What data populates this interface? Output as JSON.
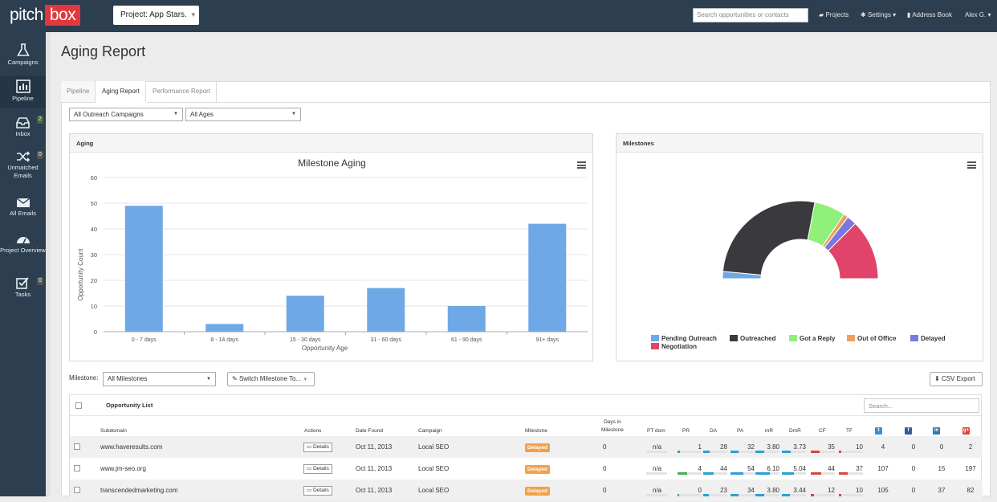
{
  "app": {
    "logo_left": "pitch",
    "logo_right": "box",
    "project_label": "Project: App Stars.",
    "search_placeholder": "Search opportunities or contacts",
    "nav": {
      "projects": "Projects",
      "settings": "Settings",
      "address_book": "Address Book",
      "user": "Alex G."
    }
  },
  "sidebar": {
    "items": [
      {
        "label": "Campaigns",
        "icon": "flask-icon"
      },
      {
        "label": "Pipeline",
        "icon": "bar-chart-icon"
      },
      {
        "label": "Inbox",
        "icon": "inbox-icon",
        "badge": "2"
      },
      {
        "label": "Unmatched Emails",
        "icon": "shuffle-icon",
        "badge": "0"
      },
      {
        "label": "All Emails",
        "icon": "envelope-icon"
      },
      {
        "label": "Project Overview",
        "icon": "dashboard-icon"
      },
      {
        "label": "Tasks",
        "icon": "checkbox-icon",
        "badge": "0"
      }
    ]
  },
  "page": {
    "title": "Aging Report"
  },
  "tabs": [
    "Pipeline",
    "Aging Report",
    "Performance Report"
  ],
  "filters": {
    "campaigns": "All Outreach Campaigns",
    "ages": "All Ages"
  },
  "aging_panel": {
    "header": "Aging"
  },
  "milestones_panel": {
    "header": "Milestones"
  },
  "chart_data": [
    {
      "type": "bar",
      "title": "Milestone Aging",
      "xlabel": "Opportunity Age",
      "ylabel": "Opportunity Count",
      "ylim": [
        0,
        60
      ],
      "yticks": [
        0,
        10,
        20,
        30,
        40,
        50,
        60
      ],
      "categories": [
        "0 - 7 days",
        "8 - 14 days",
        "15 - 30 days",
        "31 - 60 days",
        "61 - 90 days",
        "91+ days"
      ],
      "values": [
        49,
        3,
        14,
        17,
        10,
        42
      ],
      "color": "#6fa8e6"
    },
    {
      "type": "pie",
      "style": "semi-donut",
      "series": [
        {
          "name": "Pending Outreach",
          "value": 3,
          "color": "#6fa8e6"
        },
        {
          "name": "Outreached",
          "value": 53,
          "color": "#3a3a3e"
        },
        {
          "name": "Got a Reply",
          "value": 13,
          "color": "#8ff07a"
        },
        {
          "name": "Out of Office",
          "value": 2,
          "color": "#f0a05a"
        },
        {
          "name": "Delayed",
          "value": 4,
          "color": "#7a78e0"
        },
        {
          "name": "Negotiation",
          "value": 25,
          "color": "#e0446a"
        }
      ],
      "legend": "bottom"
    }
  ],
  "milestone_bar": {
    "label": "Milestone:",
    "select": "All Milestones",
    "switch_btn": "Switch Milestone To...",
    "csv_btn": "CSV Export"
  },
  "table": {
    "title": "Opportunity List",
    "search_placeholder": "Search...",
    "headers": {
      "subdomain": "Subdomain",
      "actions": "Actions",
      "date_found": "Date Found",
      "campaign": "Campaign",
      "milestone": "Milestone",
      "days_in": "Days in",
      "days_in2": "Milestone",
      "pt_dom": "PT dom",
      "pr": "PR",
      "da": "DA",
      "pa": "PA",
      "mr": "mR",
      "dmr": "DmR",
      "cf": "CF",
      "tf": "TF"
    },
    "social_headers": [
      {
        "icon": "twitter-icon",
        "glyph": "t",
        "color": "#3b8ed4"
      },
      {
        "icon": "facebook-icon",
        "glyph": "f",
        "color": "#3b5a9a"
      },
      {
        "icon": "linkedin-icon",
        "glyph": "in",
        "color": "#2a7ab0"
      },
      {
        "icon": "google-plus-icon",
        "glyph": "g+",
        "color": "#d9463a"
      }
    ],
    "details_label": "Details",
    "rows": [
      {
        "subdomain": "www.haveresults.com",
        "date": "Oct 11, 2013",
        "campaign": "Local SEO",
        "milestone": "Delayed",
        "days": "0",
        "pt": "n/a",
        "pr": "1",
        "da": "28",
        "pa": "32",
        "mr": "3.80",
        "dmr": "3.73",
        "cf": "35",
        "tf": "10",
        "tw": "4",
        "fb": "0",
        "li": "0",
        "gp": "2",
        "levels": {
          "pr": 0.1,
          "da": 0.28,
          "pa": 0.32,
          "mr": 0.38,
          "dmr": 0.37,
          "cf": 0.35,
          "tf": 0.1
        }
      },
      {
        "subdomain": "www.jm-seo.org",
        "date": "Oct 11, 2013",
        "campaign": "Local SEO",
        "milestone": "Delayed",
        "days": "0",
        "pt": "n/a",
        "pr": "4",
        "da": "44",
        "pa": "54",
        "mr": "6.10",
        "dmr": "5.04",
        "cf": "44",
        "tf": "37",
        "tw": "107",
        "fb": "0",
        "li": "15",
        "gp": "197",
        "levels": {
          "pr": 0.4,
          "da": 0.44,
          "pa": 0.54,
          "mr": 0.61,
          "dmr": 0.5,
          "cf": 0.44,
          "tf": 0.37
        }
      },
      {
        "subdomain": "transcendedmarketing.com",
        "date": "Oct 11, 2013",
        "campaign": "Local SEO",
        "milestone": "Delayed",
        "days": "0",
        "pt": "n/a",
        "pr": "0",
        "da": "23",
        "pa": "34",
        "mr": "3.80",
        "dmr": "3.44",
        "cf": "12",
        "tf": "10",
        "tw": "105",
        "fb": "0",
        "li": "37",
        "gp": "82",
        "levels": {
          "pr": 0.0,
          "da": 0.23,
          "pa": 0.34,
          "mr": 0.38,
          "dmr": 0.34,
          "cf": 0.12,
          "tf": 0.1
        }
      }
    ]
  }
}
